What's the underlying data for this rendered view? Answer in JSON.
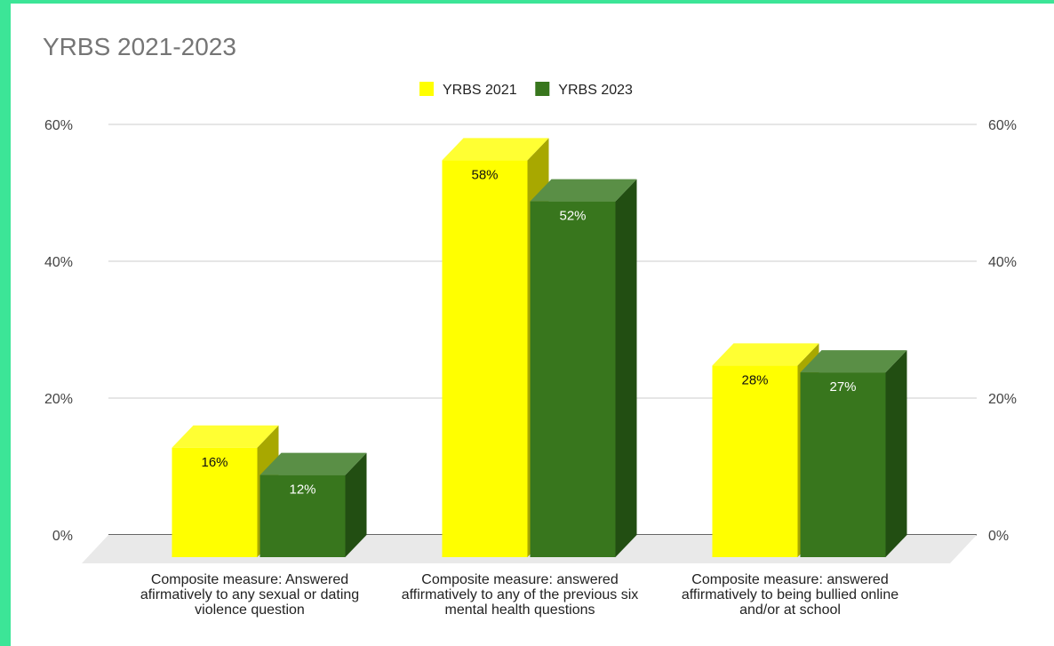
{
  "chart_data": {
    "type": "bar",
    "title": "YRBS 2021-2023",
    "categories": [
      [
        "Composite measure: Answered",
        "afirmatively to any sexual or dating",
        "violence question"
      ],
      [
        "Composite measure: answered",
        "affirmatively to any of the previous six",
        "mental health questions"
      ],
      [
        "Composite measure: answered",
        "affirmatively to being bullied online",
        "and/or at school"
      ]
    ],
    "series": [
      {
        "name": "YRBS 2021",
        "values": [
          16,
          58,
          28
        ],
        "labels": [
          "16%",
          "58%",
          "28%"
        ],
        "color": "#ffff00",
        "side_color": "#a8a800",
        "top_color": "#ffff33",
        "label_color": "#111111"
      },
      {
        "name": "YRBS 2023",
        "values": [
          12,
          52,
          27
        ],
        "labels": [
          "12%",
          "52%",
          "27%"
        ],
        "color": "#38761d",
        "side_color": "#224e12",
        "top_color": "#5a8f46",
        "label_color": "#ffffff"
      }
    ],
    "ylim": [
      0,
      60
    ],
    "yticks": [
      "0%",
      "20%",
      "40%",
      "60%"
    ],
    "ytick_values": [
      0,
      20,
      40,
      60
    ],
    "grid": true,
    "legend": "top-center",
    "secondary_axis": true
  }
}
